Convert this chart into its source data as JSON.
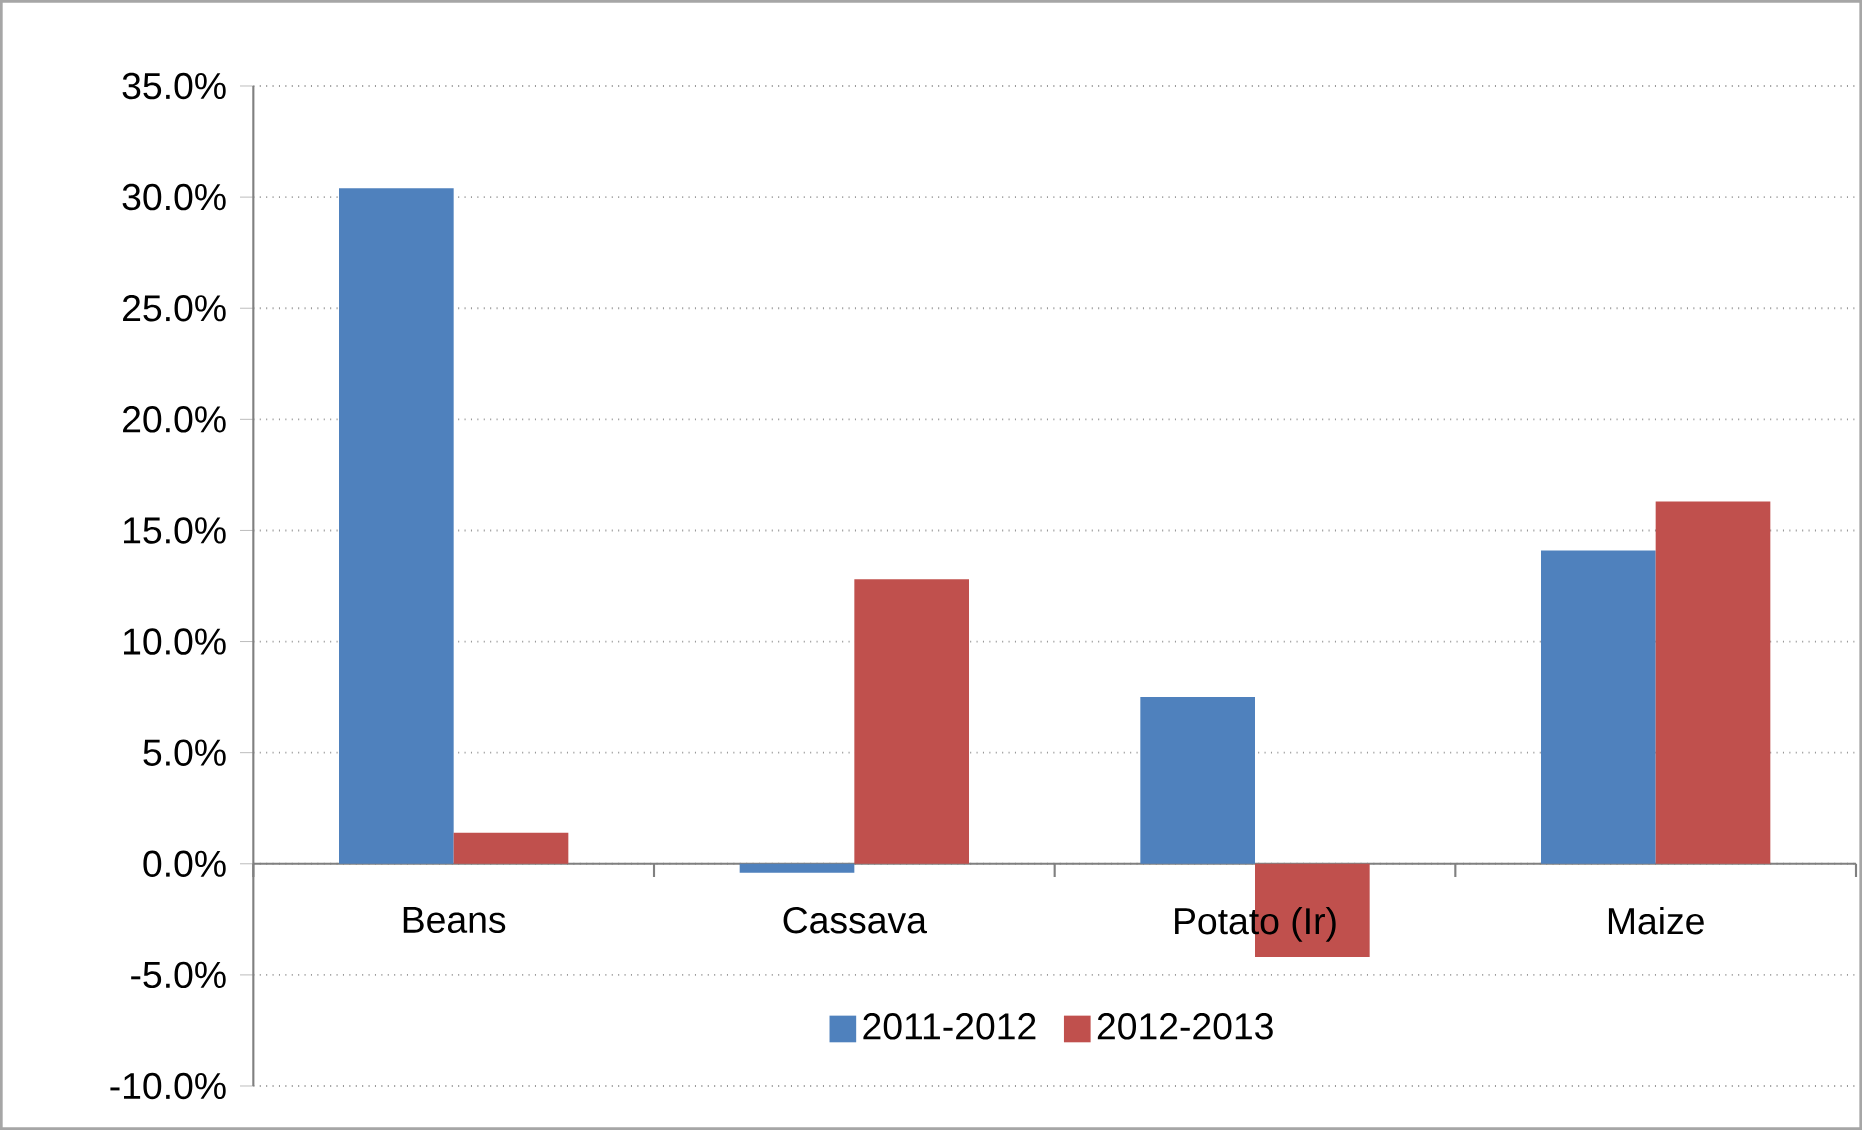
{
  "chart_data": {
    "type": "bar",
    "categories": [
      "Beans",
      "Cassava",
      "Potato (Ir)",
      "Maize"
    ],
    "series": [
      {
        "name": "2011-2012",
        "color": "#4f81bd",
        "values": [
          30.4,
          -0.4,
          7.5,
          14.1
        ]
      },
      {
        "name": "2012-2013",
        "color": "#c0504d",
        "values": [
          1.4,
          12.8,
          -4.2,
          16.3
        ]
      }
    ],
    "ylim": [
      -10,
      35
    ],
    "yticks": [
      {
        "value": -10,
        "label": "-10.0%"
      },
      {
        "value": -5,
        "label": "-5.0%"
      },
      {
        "value": 0,
        "label": "0.0%"
      },
      {
        "value": 5,
        "label": "5.0%"
      },
      {
        "value": 10,
        "label": "10.0%"
      },
      {
        "value": 15,
        "label": "15.0%"
      },
      {
        "value": 20,
        "label": "20.0%"
      },
      {
        "value": 25,
        "label": "25.0%"
      },
      {
        "value": 30,
        "label": "30.0%"
      },
      {
        "value": 35,
        "label": "35.0%"
      }
    ],
    "grid": "y",
    "legend": "bottom"
  }
}
